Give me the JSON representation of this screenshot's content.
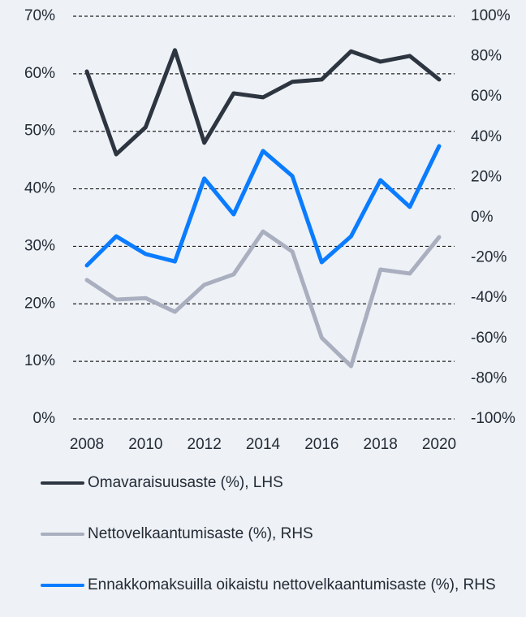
{
  "chart_data": {
    "type": "line",
    "x": [
      2008,
      2009,
      2010,
      2011,
      2012,
      2013,
      2014,
      2015,
      2016,
      2017,
      2018,
      2019,
      2020
    ],
    "xlim": [
      2008,
      2020
    ],
    "xticks": [
      2008,
      2010,
      2012,
      2014,
      2016,
      2018,
      2020
    ],
    "ylim": [
      0,
      70
    ],
    "yticks": [
      {
        "value": 0,
        "label": "0%"
      },
      {
        "value": 10,
        "label": "10%"
      },
      {
        "value": 20,
        "label": "20%"
      },
      {
        "value": 30,
        "label": "30%"
      },
      {
        "value": 40,
        "label": "40%"
      },
      {
        "value": 50,
        "label": "50%"
      },
      {
        "value": 60,
        "label": "60%"
      },
      {
        "value": 70,
        "label": "70%"
      }
    ],
    "y2lim": [
      -100,
      100
    ],
    "y2ticks": [
      {
        "value": -100,
        "label": "-100%"
      },
      {
        "value": -80,
        "label": "-80%"
      },
      {
        "value": -60,
        "label": "-60%"
      },
      {
        "value": -40,
        "label": "-40%"
      },
      {
        "value": -20,
        "label": "-20%"
      },
      {
        "value": 0,
        "label": "0%"
      },
      {
        "value": 20,
        "label": "20%"
      },
      {
        "value": 40,
        "label": "40%"
      },
      {
        "value": 60,
        "label": "60%"
      },
      {
        "value": 80,
        "label": "80%"
      },
      {
        "value": 100,
        "label": "100%"
      }
    ],
    "grid": true,
    "legend": "bottom",
    "series": [
      {
        "name": "Omavaraisuusaste (%), LHS",
        "color": "#2d3540",
        "axis": "y",
        "values": [
          60.4,
          46,
          50.7,
          64.1,
          48,
          56.6,
          55.9,
          58.6,
          59,
          63.9,
          62.1,
          63.1,
          59
        ]
      },
      {
        "name": "Nettovelkaantumisaste (%), RHS",
        "color": "#a9afbf",
        "axis": "y2",
        "values": [
          -31,
          -40.7,
          -40,
          -46.8,
          -33.4,
          -28.2,
          -6.9,
          -16.9,
          -59.7,
          -73.8,
          -25.8,
          -27.8,
          -9.7
        ]
      },
      {
        "name": "Ennakkomaksuilla oikaistu nettovelkaantumisaste (%), RHS",
        "color": "#0a7cff",
        "axis": "y2",
        "values": [
          -23.8,
          -9.3,
          -18.1,
          -21.8,
          19.4,
          1.6,
          33.1,
          20.6,
          -22.2,
          -9.3,
          18.6,
          5.3,
          35.5
        ]
      }
    ]
  }
}
